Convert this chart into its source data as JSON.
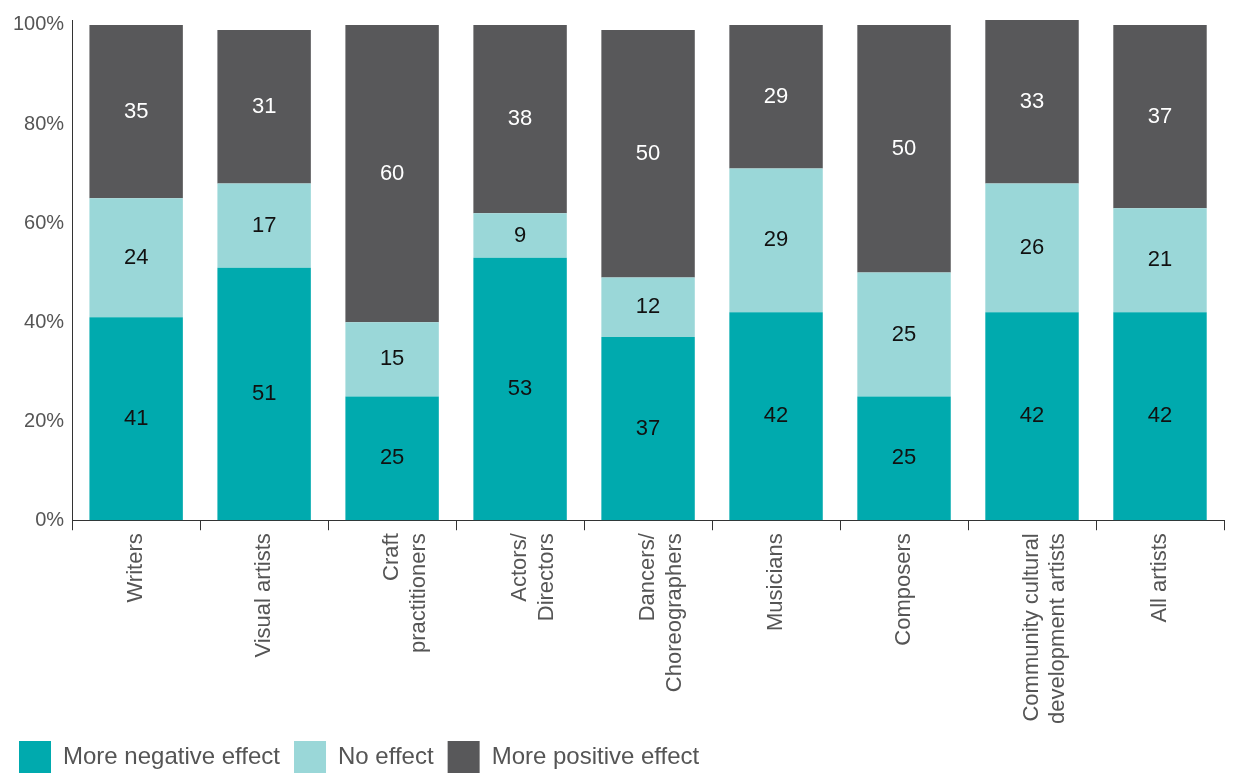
{
  "chart_data": {
    "type": "bar",
    "stacked": true,
    "data_labels": true,
    "grid": false,
    "legend": "bottom left",
    "categories": [
      "Writers",
      "Visual artists",
      "Craft\npractitioners",
      "Actors/\nDirectors",
      "Dancers/\nChoreographers",
      "Musicians",
      "Composers",
      "Community cultural\ndevelopment artists",
      "All artists"
    ],
    "series": [
      {
        "name": "More negative effect",
        "color": "#00aaae",
        "values": [
          41,
          51,
          25,
          53,
          37,
          42,
          25,
          42,
          42
        ]
      },
      {
        "name": "No effect",
        "color": "#9ad7d8",
        "values": [
          24,
          17,
          15,
          9,
          12,
          29,
          25,
          26,
          21
        ]
      },
      {
        "name": "More positive effect",
        "color": "#58585a",
        "values": [
          35,
          31,
          60,
          38,
          50,
          29,
          50,
          33,
          37
        ]
      }
    ],
    "ylim": [
      0,
      101
    ],
    "yticks": [
      {
        "value": 0,
        "label": "0%"
      },
      {
        "value": 20,
        "label": "20%"
      },
      {
        "value": 40,
        "label": "40%"
      },
      {
        "value": 60,
        "label": "60%"
      },
      {
        "value": 80,
        "label": "80%"
      },
      {
        "value": 100,
        "label": "100%"
      }
    ]
  }
}
